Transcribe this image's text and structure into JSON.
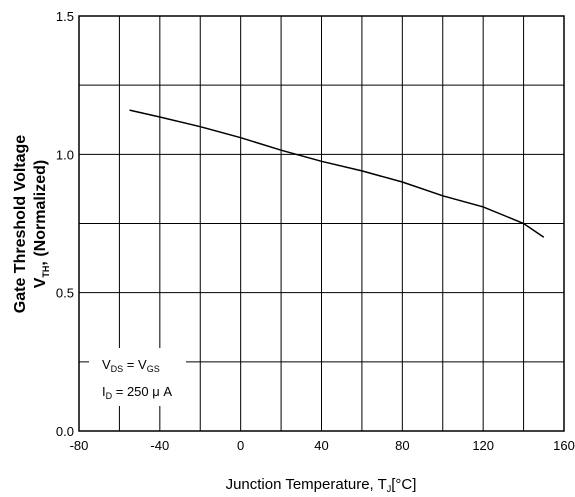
{
  "chart_data": {
    "type": "line",
    "xlabel_main": "Junction Temperature, T",
    "xlabel_sub": "J",
    "xlabel_unit": "[°C]",
    "ylabel_line1": "Gate Threshold Voltage",
    "ylabel_line2_v": "V",
    "ylabel_line2_sub": "TH",
    "ylabel_line2_rest": ", (Normalized)",
    "xlim": [
      -80,
      160
    ],
    "ylim": [
      0.0,
      1.5
    ],
    "x_ticks": [
      -80,
      -40,
      0,
      40,
      80,
      120,
      160
    ],
    "x_tick_labels": [
      "-80",
      "-40",
      "0",
      "40",
      "80",
      "120",
      "160"
    ],
    "y_ticks": [
      0.0,
      0.5,
      1.0,
      1.5
    ],
    "y_tick_labels": [
      "0.0",
      "0.5",
      "1.0",
      "1.5"
    ],
    "grid": true,
    "series": [
      {
        "x": [
          -55,
          -40,
          -20,
          0,
          20,
          40,
          60,
          80,
          100,
          120,
          140,
          150
        ],
        "y": [
          1.16,
          1.135,
          1.1,
          1.06,
          1.015,
          0.975,
          0.94,
          0.9,
          0.85,
          0.81,
          0.75,
          0.7
        ]
      }
    ],
    "annotation": {
      "line1_a": "V",
      "line1_a_sub": "DS",
      "line1_eq": " = V",
      "line1_b_sub": "GS",
      "line2_a": "I",
      "line2_a_sub": "D",
      "line2_rest": " = 250 μ A"
    },
    "colors": {
      "line": "#000000",
      "grid": "#000000",
      "background": "#ffffff"
    }
  }
}
